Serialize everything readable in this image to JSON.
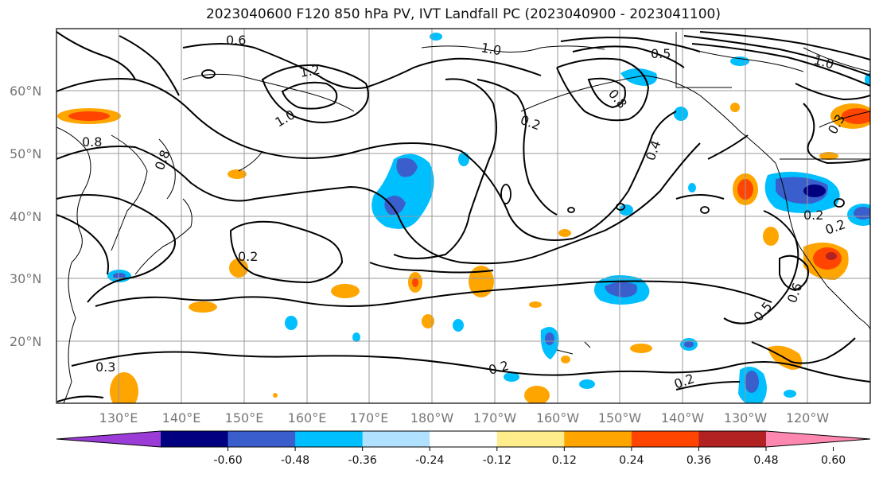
{
  "title": "2023040600 F120 850 hPa PV, IVT Landfall PC (2023040900 - 2023041100)",
  "latitudes": [
    "60°N",
    "50°N",
    "40°N",
    "30°N",
    "20°N"
  ],
  "longitudes": [
    "130°E",
    "140°E",
    "150°E",
    "160°E",
    "170°E",
    "180°W",
    "170°W",
    "160°W",
    "150°W",
    "140°W",
    "130°W",
    "120°W"
  ],
  "colorbar": {
    "colors": [
      "#9b3cd6",
      "#000080",
      "#3a5fcd",
      "#00bfff",
      "#b0e2ff",
      "#ffffff",
      "#ffec8b",
      "#ffa500",
      "#ff4500",
      "#b22222",
      "#ff88b0"
    ],
    "tick_labels": [
      "-0.60",
      "-0.48",
      "-0.36",
      "-0.24",
      "-0.12",
      "0.12",
      "0.24",
      "0.36",
      "0.48",
      "0.60"
    ]
  },
  "contour_labels": [
    "0.6",
    "1.0",
    "0.5",
    "1.0",
    "1.2",
    "1.0",
    "0.8",
    "0.8",
    "0.8",
    "0.2",
    "0.4",
    "0.2",
    "0.2",
    "0.6",
    "0.5",
    "0.2",
    "0.2",
    "0.3",
    "0.2",
    "0.3"
  ]
}
